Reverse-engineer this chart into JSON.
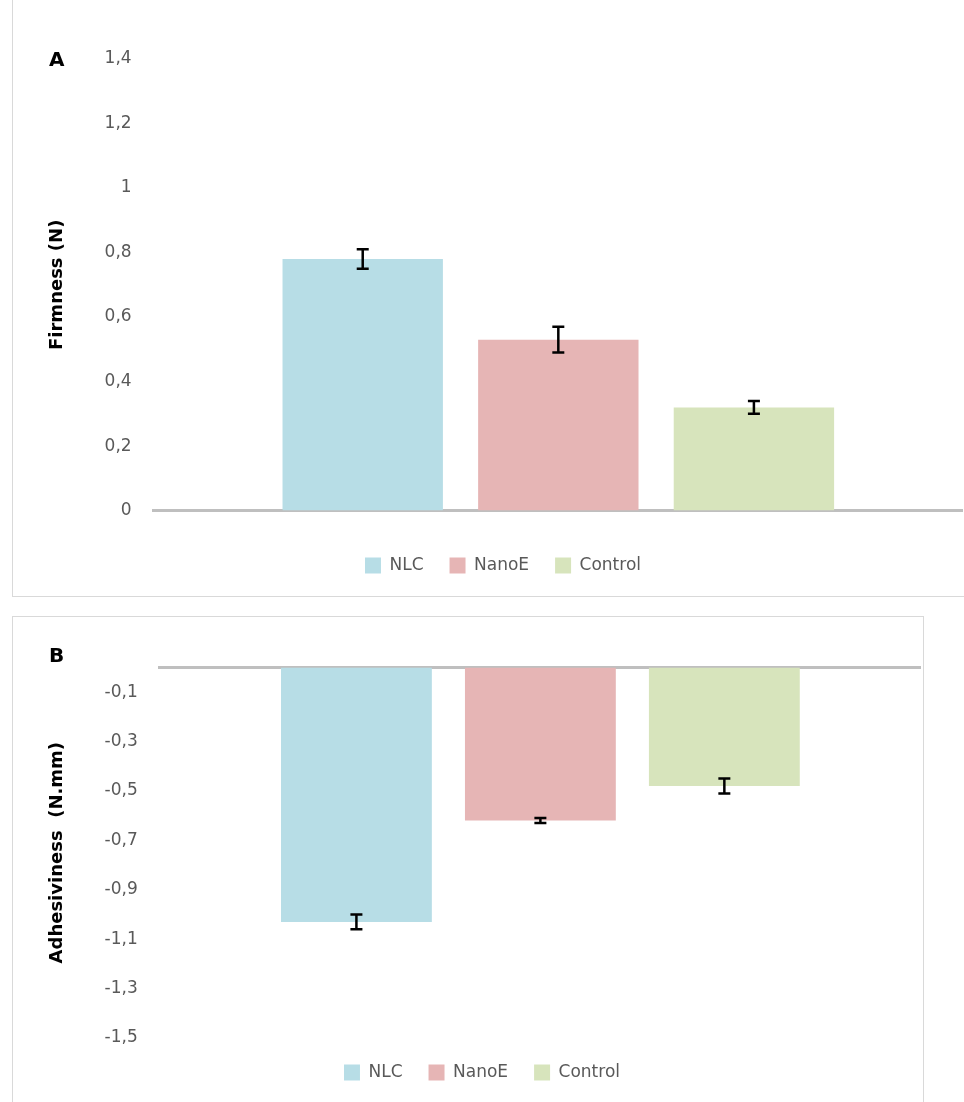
{
  "chart_data": [
    {
      "type": "bar",
      "categories": [
        null
      ],
      "ylabel": "Firmness (N)",
      "annotations": [
        "A"
      ],
      "series": [
        {
          "name": "NLC",
          "color": "#b7dde6",
          "values": [
            0.78
          ],
          "errors": [
            0.03
          ]
        },
        {
          "name": "NanoE",
          "color": "#e6b5b5",
          "values": [
            0.53
          ],
          "errors": [
            0.04
          ]
        },
        {
          "name": "Control",
          "color": "#d7e4bc",
          "values": [
            0.32
          ],
          "errors": [
            0.02
          ]
        }
      ],
      "ylim": [
        0,
        1.4
      ],
      "yticks": [
        0,
        {
          "value": 0.2,
          "label": "0,2"
        },
        {
          "value": 0.4,
          "label": "0,4"
        },
        {
          "value": 0.6,
          "label": "0,6"
        },
        {
          "value": 0.8,
          "label": "0,8"
        },
        1,
        {
          "value": 1.2,
          "label": "1,2"
        },
        {
          "value": 1.4,
          "label": "1,4"
        }
      ],
      "grid": false,
      "legend": "bottom"
    },
    {
      "type": "bar",
      "categories": [
        null
      ],
      "ylabel": "Adhesiviness  (N.mm)",
      "annotations": [
        "B"
      ],
      "series": [
        {
          "name": "NLC",
          "color": "#b7dde6",
          "values": [
            -1.03
          ],
          "errors": [
            0.03
          ]
        },
        {
          "name": "NanoE",
          "color": "#e6b5b5",
          "values": [
            -0.62
          ],
          "errors": [
            0.01
          ]
        },
        {
          "name": "Control",
          "color": "#d7e4bc",
          "values": [
            -0.48
          ],
          "errors": [
            0.03
          ]
        }
      ],
      "ylim": [
        -1.5,
        0
      ],
      "yticks": [
        {
          "value": -1.5,
          "label": "-1,5"
        },
        {
          "value": -1.3,
          "label": "-1,3"
        },
        {
          "value": -1.1,
          "label": "-1,1"
        },
        {
          "value": -0.9,
          "label": "-0,9"
        },
        {
          "value": -0.7,
          "label": "-0,7"
        },
        {
          "value": -0.5,
          "label": "-0,5"
        },
        {
          "value": -0.3,
          "label": "-0,3"
        },
        {
          "value": -0.1,
          "label": "-0,1"
        }
      ],
      "grid": false,
      "legend": "bottom"
    }
  ]
}
